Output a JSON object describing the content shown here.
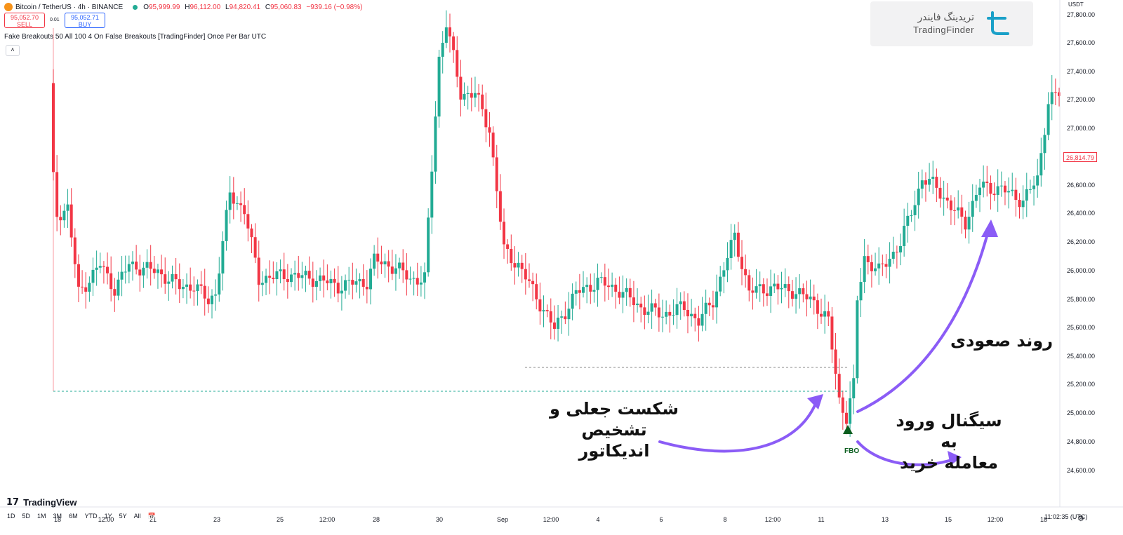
{
  "header": {
    "symbol": "Bitcoin / TetherUS · 4h · BINANCE",
    "ohlc": {
      "o_label": "O",
      "o": "95,999.99",
      "h_label": "H",
      "h": "96,112.00",
      "l_label": "L",
      "l": "94,820.41",
      "c_label": "C",
      "c": "95,060.83"
    },
    "change": "−939.16 (−0.98%)"
  },
  "trade": {
    "sell_price": "95,052.70",
    "sell_label": "SELL",
    "spread": "0.01",
    "buy_price": "95,052.71",
    "buy_label": "BUY"
  },
  "indicator": {
    "label": "Fake Breakouts 50 All 100 4 On False Breakouts [TradingFinder] Once Per Bar UTC",
    "collapse_glyph": "˄"
  },
  "watermark": {
    "fa": "تریدینگ فایندر",
    "en": "TradingFinder"
  },
  "y_axis": {
    "currency": "USDT",
    "ticks": [
      "27,800.00",
      "27,600.00",
      "27,400.00",
      "27,200.00",
      "27,000.00",
      "26,600.00",
      "26,400.00",
      "26,200.00",
      "26,000.00",
      "25,800.00",
      "25,600.00",
      "25,400.00",
      "25,200.00",
      "25,000.00",
      "24,800.00",
      "24,600.00"
    ],
    "current_price": "26,814.79"
  },
  "x_axis": {
    "ticks": [
      "18",
      "12:00",
      "21",
      "23",
      "25",
      "12:00",
      "28",
      "30",
      "Sep",
      "12:00",
      "4",
      "6",
      "8",
      "12:00",
      "11",
      "13",
      "15",
      "12:00",
      "18"
    ]
  },
  "timeframes": [
    "1D",
    "5D",
    "1M",
    "3M",
    "6M",
    "YTD",
    "1Y",
    "5Y",
    "All"
  ],
  "footer": {
    "brand": "TradingView",
    "clock": "11:02:35 (UTC)"
  },
  "annotations": {
    "fake_breakout": [
      "شکست جعلی و تشخیص",
      "اندیکاتور"
    ],
    "uptrend": "روند صعودی",
    "buy_signal": [
      "سیگنال ورود به",
      "معامله خرید"
    ],
    "fbo": "FBO"
  },
  "colors": {
    "up": "#22ab94",
    "down": "#f23645",
    "arrow": "#8b5cf6",
    "signal": "#0b5e1f"
  }
}
